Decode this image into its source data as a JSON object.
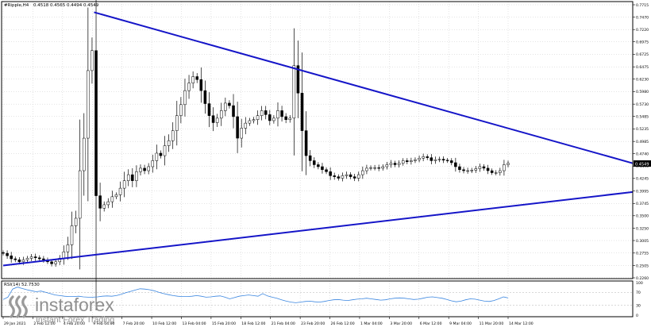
{
  "header": {
    "symbol": "#Ripple,H4",
    "ohlc": "0.4518 0.4565 0.4494 0.4549"
  },
  "price_tag": "0.4549",
  "rsi_label": "RSI(14) 52.7530",
  "watermark": {
    "brand": "instaforex",
    "tagline": "Instant Forex Trading"
  },
  "colors": {
    "background": "#ffffff",
    "candles": "#000000",
    "trendlines": "#1515c8",
    "rsi": "#3a86e0",
    "grid": "#c8c8c8"
  },
  "chart_data": [
    {
      "type": "candlestick",
      "title": "#Ripple,H4",
      "x_tick_labels": [
        "29 Jan 2021",
        "2 Feb 12:00",
        "4 Feb 20:00",
        "9 Feb 04:00",
        "7 Feb 20:00",
        "10 Feb 12:00",
        "13 Feb 04:00",
        "15 Feb 20:00",
        "18 Feb 12:00",
        "21 Feb 04:00",
        "23 Feb 20:00",
        "26 Feb 12:00",
        "1 Mar 04:00",
        "3 Mar 20:00",
        "6 Mar 12:00",
        "9 Mar 04:00",
        "11 Mar 20:00",
        "14 Mar 12:00"
      ],
      "y_tick_labels": [
        "0.7715",
        "0.7470",
        "0.7220",
        "0.6975",
        "0.6725",
        "0.6475",
        "0.6230",
        "0.5980",
        "0.5730",
        "0.5485",
        "0.5235",
        "0.4985",
        "0.4740",
        "0.4490",
        "0.4245",
        "0.3995",
        "0.3745",
        "0.3500",
        "0.3250",
        "0.3005",
        "0.2755",
        "0.2505",
        "0.2260"
      ],
      "ylim": [
        0.226,
        0.7715
      ],
      "grid": true,
      "last_price": 0.4549,
      "close_series": [
        0.275,
        0.27,
        0.264,
        0.262,
        0.258,
        0.262,
        0.265,
        0.268,
        0.266,
        0.264,
        0.262,
        0.258,
        0.254,
        0.258,
        0.265,
        0.278,
        0.292,
        0.33,
        0.345,
        0.44,
        0.505,
        0.64,
        0.68,
        0.39,
        0.365,
        0.372,
        0.378,
        0.388,
        0.392,
        0.405,
        0.42,
        0.432,
        0.42,
        0.438,
        0.445,
        0.44,
        0.448,
        0.46,
        0.475,
        0.47,
        0.49,
        0.5,
        0.52,
        0.55,
        0.572,
        0.6,
        0.615,
        0.628,
        0.622,
        0.6,
        0.574,
        0.55,
        0.536,
        0.545,
        0.56,
        0.575,
        0.57,
        0.548,
        0.505,
        0.525,
        0.535,
        0.54,
        0.542,
        0.55,
        0.56,
        0.552,
        0.54,
        0.545,
        0.56,
        0.548,
        0.542,
        0.545,
        0.65,
        0.595,
        0.52,
        0.47,
        0.46,
        0.452,
        0.448,
        0.442,
        0.438,
        0.43,
        0.428,
        0.425,
        0.43,
        0.432,
        0.428,
        0.425,
        0.432,
        0.44,
        0.445,
        0.446,
        0.446,
        0.445,
        0.448,
        0.452,
        0.455,
        0.452,
        0.455,
        0.46,
        0.458,
        0.46,
        0.462,
        0.465,
        0.468,
        0.466,
        0.46,
        0.462,
        0.463,
        0.461,
        0.46,
        0.456,
        0.448,
        0.442,
        0.44,
        0.44,
        0.441,
        0.444,
        0.448,
        0.445,
        0.44,
        0.436,
        0.436,
        0.44,
        0.452,
        0.4549
      ]
    },
    {
      "type": "line",
      "title": "RSI(14) 52.7530",
      "y_tick_labels": [
        "100",
        "70",
        "30",
        "0"
      ],
      "ylim": [
        0,
        100
      ],
      "series": [
        {
          "name": "RSI(14)",
          "values": [
            48,
            55,
            80,
            86,
            82,
            78,
            75,
            72,
            74,
            70,
            66,
            62,
            60,
            58,
            57,
            57,
            58,
            56,
            55,
            55,
            56,
            58,
            59,
            58,
            60,
            64,
            69,
            73,
            77,
            81,
            80,
            78,
            75,
            70,
            66,
            63,
            60,
            58,
            57,
            57,
            58,
            60,
            58,
            55,
            56,
            58,
            59,
            55,
            50,
            54,
            58,
            60,
            62,
            60,
            58,
            66,
            59,
            55,
            52,
            47,
            43,
            40,
            38,
            40,
            42,
            43,
            41,
            40,
            42,
            45,
            47,
            48,
            46,
            45,
            47,
            49,
            50,
            52,
            50,
            48,
            46,
            47,
            50,
            52,
            53,
            52,
            50,
            48,
            49,
            52,
            55,
            56,
            54,
            52,
            48,
            44,
            41,
            43,
            47,
            50,
            49,
            46,
            43,
            42,
            45,
            50,
            56,
            52.753
          ]
        }
      ]
    }
  ]
}
